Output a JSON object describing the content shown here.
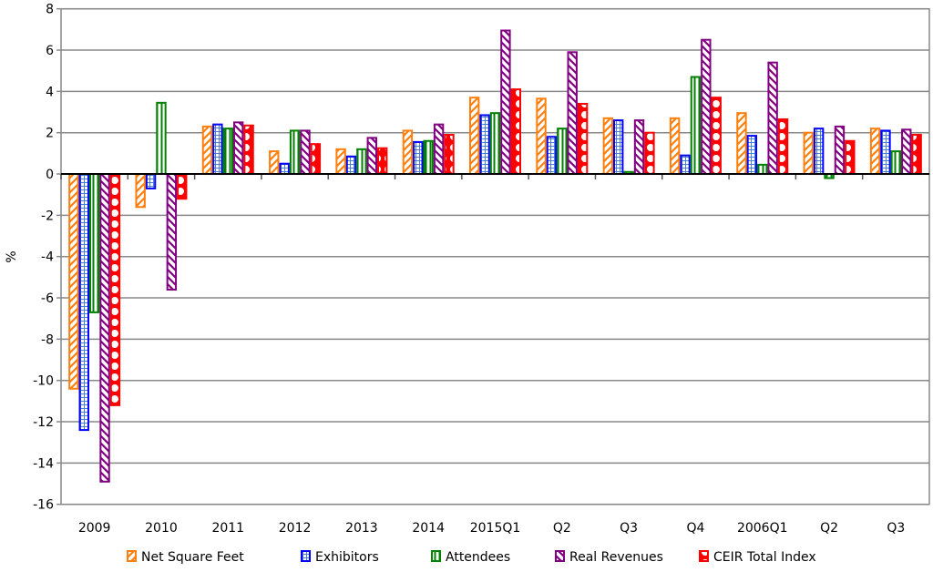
{
  "chart_data": {
    "type": "bar",
    "title": "",
    "xlabel": "",
    "ylabel": "%",
    "ylim": [
      -16,
      8
    ],
    "yticks": [
      8,
      6,
      4,
      2,
      0,
      -2,
      -4,
      -6,
      -8,
      -10,
      -12,
      -14,
      -16
    ],
    "grid": true,
    "legend_placement": "bottom",
    "categories": [
      "2009",
      "2010",
      "2011",
      "2012",
      "2013",
      "2014",
      "2015Q1",
      "Q2",
      "Q3",
      "Q4",
      "2006Q1",
      "Q2",
      "Q3"
    ],
    "series": [
      {
        "name": "Net Square Feet",
        "color": "#ff7f0e",
        "pattern": "diagonal-up",
        "values": [
          -10.4,
          -1.6,
          2.3,
          1.1,
          1.2,
          2.1,
          3.7,
          3.65,
          2.7,
          2.7,
          2.95,
          2.0,
          2.2
        ]
      },
      {
        "name": "Exhibitors",
        "color": "#0000ff",
        "pattern": "grid",
        "values": [
          -12.4,
          -0.7,
          2.4,
          0.5,
          0.85,
          1.55,
          2.85,
          1.8,
          2.6,
          0.9,
          1.85,
          2.2,
          2.1
        ]
      },
      {
        "name": "Attendees",
        "color": "#008000",
        "pattern": "vertical",
        "values": [
          -6.7,
          3.45,
          2.2,
          2.1,
          1.2,
          1.6,
          2.95,
          2.2,
          0.1,
          4.7,
          0.45,
          -0.2,
          1.1
        ]
      },
      {
        "name": "Real Revenues",
        "color": "#800080",
        "pattern": "diagonal-down",
        "values": [
          -14.9,
          -5.6,
          2.5,
          2.1,
          1.75,
          2.4,
          6.95,
          5.9,
          2.6,
          6.5,
          5.4,
          2.3,
          2.15
        ]
      },
      {
        "name": "CEIR Total Index",
        "color": "#ff0000",
        "pattern": "diamonds",
        "values": [
          -11.2,
          -1.2,
          2.35,
          1.45,
          1.25,
          1.9,
          4.1,
          3.4,
          2.0,
          3.7,
          2.65,
          1.6,
          1.9
        ]
      }
    ]
  }
}
